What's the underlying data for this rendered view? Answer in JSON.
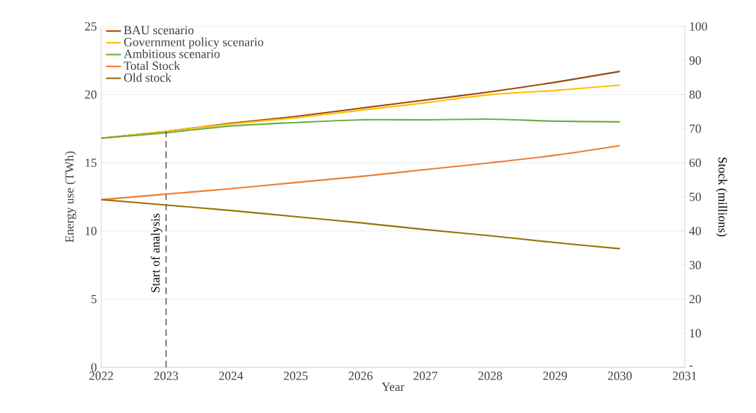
{
  "chart_data": {
    "type": "line",
    "xlabel": "Year",
    "ylabel": "Energy use (TWh)",
    "y2label": "Stock (millions)",
    "x": [
      2022,
      2023,
      2024,
      2025,
      2026,
      2027,
      2028,
      2029,
      2030
    ],
    "series": [
      {
        "name": "BAU scenario",
        "color": "#9e480e",
        "values": [
          16.8,
          17.3,
          17.9,
          18.4,
          19.0,
          19.6,
          20.2,
          20.9,
          21.7
        ]
      },
      {
        "name": "Government policy scenario",
        "color": "#ffc000",
        "values": [
          16.8,
          17.3,
          17.85,
          18.3,
          18.85,
          19.4,
          20.0,
          20.3,
          20.7
        ]
      },
      {
        "name": "Ambitious scenario",
        "color": "#70ad47",
        "values": [
          16.8,
          17.2,
          17.7,
          17.95,
          18.15,
          18.15,
          18.2,
          18.05,
          18.0
        ]
      },
      {
        "name": "Total Stock",
        "color": "#ed7d31",
        "axis": "y2",
        "values": [
          49.2,
          50.8,
          52.4,
          54.2,
          56.0,
          58.0,
          60.0,
          62.2,
          65.0
        ]
      },
      {
        "name": "Old stock",
        "color": "#997300",
        "axis": "y2",
        "values": [
          49.2,
          47.6,
          46.0,
          44.2,
          42.4,
          40.4,
          38.6,
          36.6,
          34.8
        ]
      }
    ],
    "xlim": [
      2022,
      2031
    ],
    "xticks": [
      2022,
      2023,
      2024,
      2025,
      2026,
      2027,
      2028,
      2029,
      2030,
      2031
    ],
    "ylim": [
      0,
      25
    ],
    "yticks": [
      0,
      5,
      10,
      15,
      20,
      25
    ],
    "y2lim": [
      0,
      100
    ],
    "y2ticks": [
      {
        "value": 0,
        "label": "-"
      },
      10,
      20,
      30,
      40,
      50,
      60,
      70,
      80,
      90,
      100
    ],
    "ref_lines": [
      {
        "axis": "x",
        "value": 2023,
        "label": "Start of analysis",
        "color": "#404040",
        "line_style": "dashed"
      }
    ],
    "grid": "y",
    "legend": "top left"
  }
}
